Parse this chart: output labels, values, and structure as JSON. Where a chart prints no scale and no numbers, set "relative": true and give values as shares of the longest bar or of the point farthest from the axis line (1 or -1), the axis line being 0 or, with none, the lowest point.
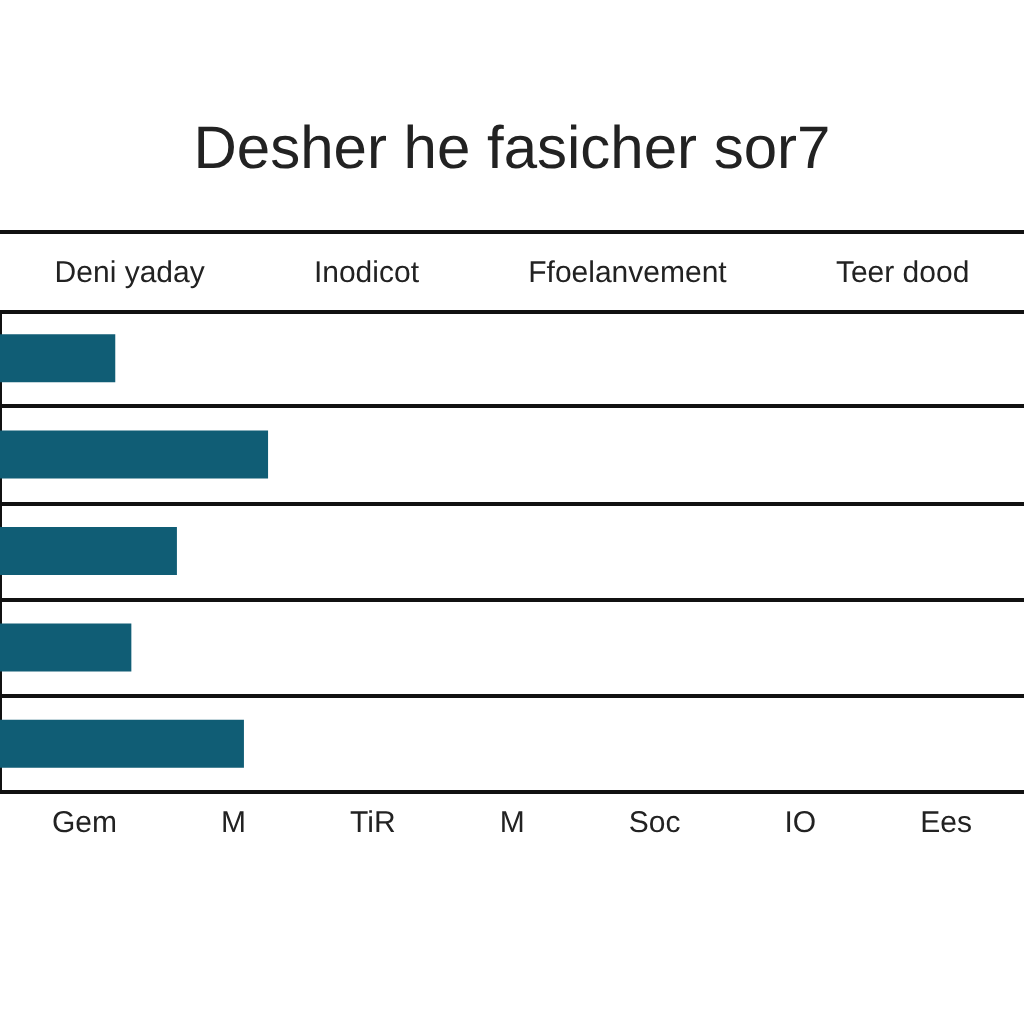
{
  "chart_data": {
    "type": "bar",
    "orientation": "horizontal",
    "relative": true,
    "title": "Desher he fasicher sor7",
    "categories": [
      null,
      null,
      null,
      null,
      null
    ],
    "values": [
      0.43,
      1,
      0.66,
      0.49,
      0.91
    ],
    "color": "#105d75",
    "grid": "y",
    "annotations": [
      "Deni yaday",
      "Inodicot",
      "Ffoelanvement",
      "Teer dood",
      "Gem",
      "M",
      "TiR",
      "M",
      "Soc",
      "IO",
      "Ees"
    ]
  }
}
